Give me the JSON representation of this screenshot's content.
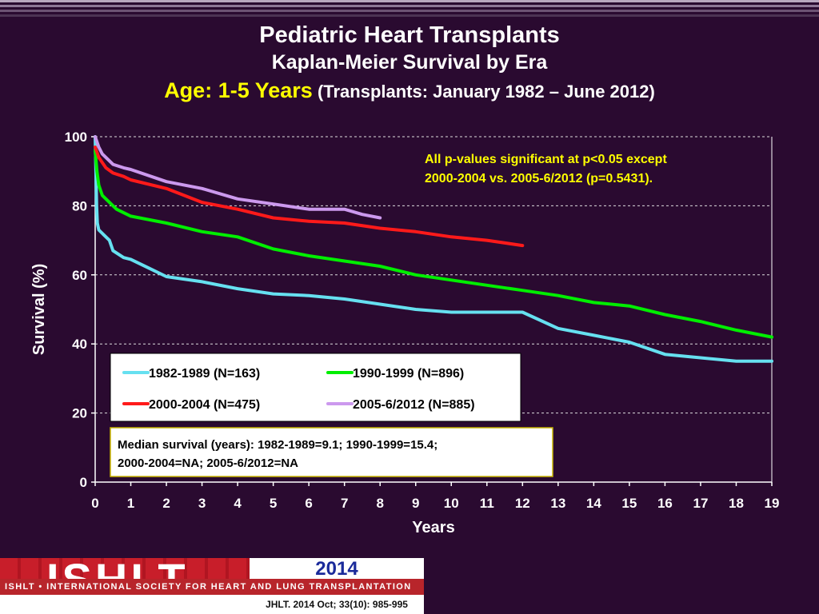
{
  "slide": {
    "title": "Pediatric Heart Transplants",
    "subtitle": "Kaplan-Meier Survival by Era",
    "age_label": "Age: 1-5 Years",
    "transplant_range": "(Transplants: January 1982 – June 2012)",
    "pvalue_note_line1": "All p-values significant at p<0.05 except",
    "pvalue_note_line2": "2000-2004 vs. 2005-6/2012 (p=0.5431).",
    "median_line1": "Median survival (years): 1982-1989=9.1; 1990-1999=15.4;",
    "median_line2": "2000-2004=NA; 2005-6/2012=NA"
  },
  "footer": {
    "logo": "ISHLT",
    "banner": "ISHLT • INTERNATIONAL SOCIETY FOR HEART AND LUNG TRANSPLANTATION",
    "year": "2014",
    "journal": "JHLT. 2014 Oct; 33(10): 985-995"
  },
  "colors": {
    "background": "#2a0a30",
    "title_text": "#ffffff",
    "accent_yellow": "#ffff00",
    "series_1982": "#66e0f0",
    "series_1990": "#00ee00",
    "series_2000": "#ff1a1a",
    "series_2005": "#cc99ee"
  },
  "chart_data": {
    "type": "line",
    "xlabel": "Years",
    "ylabel": "Survival (%)",
    "xlim": [
      0,
      19
    ],
    "ylim": [
      0,
      100
    ],
    "x_ticks": [
      "0",
      "1",
      "2",
      "3",
      "4",
      "5",
      "6",
      "7",
      "8",
      "9",
      "10",
      "11",
      "12",
      "13",
      "14",
      "15",
      "16",
      "17",
      "18",
      "19"
    ],
    "y_ticks": [
      "0",
      "20",
      "40",
      "60",
      "80",
      "100"
    ],
    "grid": "horizontal dashed",
    "legend_position": "lower-left",
    "series": [
      {
        "name": "1982-1989  (N=163)",
        "color": "#66e0f0",
        "points": [
          [
            0,
            100
          ],
          [
            0.02,
            90
          ],
          [
            0.04,
            80
          ],
          [
            0.06,
            75
          ],
          [
            0.1,
            73
          ],
          [
            0.3,
            71
          ],
          [
            0.4,
            70
          ],
          [
            0.5,
            67
          ],
          [
            0.8,
            65
          ],
          [
            1,
            64.5
          ],
          [
            1.5,
            62
          ],
          [
            2,
            59.5
          ],
          [
            3,
            58
          ],
          [
            4,
            56
          ],
          [
            5,
            54.5
          ],
          [
            6,
            54
          ],
          [
            7,
            53
          ],
          [
            8,
            51.5
          ],
          [
            9,
            50
          ],
          [
            10,
            49.2
          ],
          [
            11,
            49.2
          ],
          [
            12,
            49.2
          ],
          [
            13,
            44.5
          ],
          [
            14,
            42.5
          ],
          [
            15,
            40.5
          ],
          [
            16,
            37
          ],
          [
            17,
            36
          ],
          [
            18,
            35
          ],
          [
            19,
            35
          ]
        ]
      },
      {
        "name": "1990-1999 (N=896)",
        "color": "#00ee00",
        "points": [
          [
            0,
            96
          ],
          [
            0.05,
            90
          ],
          [
            0.1,
            86
          ],
          [
            0.2,
            83
          ],
          [
            0.4,
            81
          ],
          [
            0.6,
            79
          ],
          [
            1,
            77
          ],
          [
            2,
            75
          ],
          [
            3,
            72.5
          ],
          [
            4,
            71
          ],
          [
            5,
            67.5
          ],
          [
            6,
            65.5
          ],
          [
            7,
            64
          ],
          [
            8,
            62.5
          ],
          [
            9,
            60
          ],
          [
            10,
            58.5
          ],
          [
            11,
            57
          ],
          [
            12,
            55.5
          ],
          [
            13,
            54
          ],
          [
            14,
            52
          ],
          [
            15,
            51
          ],
          [
            16,
            48.5
          ],
          [
            17,
            46.5
          ],
          [
            18,
            44
          ],
          [
            19,
            42
          ]
        ]
      },
      {
        "name": "2000-2004 (N=475)",
        "color": "#ff1a1a",
        "points": [
          [
            0,
            97
          ],
          [
            0.1,
            94
          ],
          [
            0.3,
            91
          ],
          [
            0.5,
            89.5
          ],
          [
            0.8,
            88.5
          ],
          [
            1,
            87.5
          ],
          [
            2,
            85
          ],
          [
            3,
            81
          ],
          [
            4,
            79
          ],
          [
            5,
            76.5
          ],
          [
            6,
            75.5
          ],
          [
            7,
            75
          ],
          [
            8,
            73.5
          ],
          [
            9,
            72.5
          ],
          [
            10,
            71
          ],
          [
            11,
            70
          ],
          [
            12,
            68.5
          ]
        ]
      },
      {
        "name": "2005-6/2012 (N=885)",
        "color": "#cc99ee",
        "points": [
          [
            0,
            100
          ],
          [
            0.1,
            97
          ],
          [
            0.2,
            95
          ],
          [
            0.5,
            92
          ],
          [
            0.8,
            91
          ],
          [
            1,
            90.5
          ],
          [
            2,
            87
          ],
          [
            3,
            85
          ],
          [
            4,
            82
          ],
          [
            5,
            80.5
          ],
          [
            6,
            79
          ],
          [
            7,
            79
          ],
          [
            7.5,
            77.5
          ],
          [
            8,
            76.5
          ]
        ]
      }
    ]
  }
}
